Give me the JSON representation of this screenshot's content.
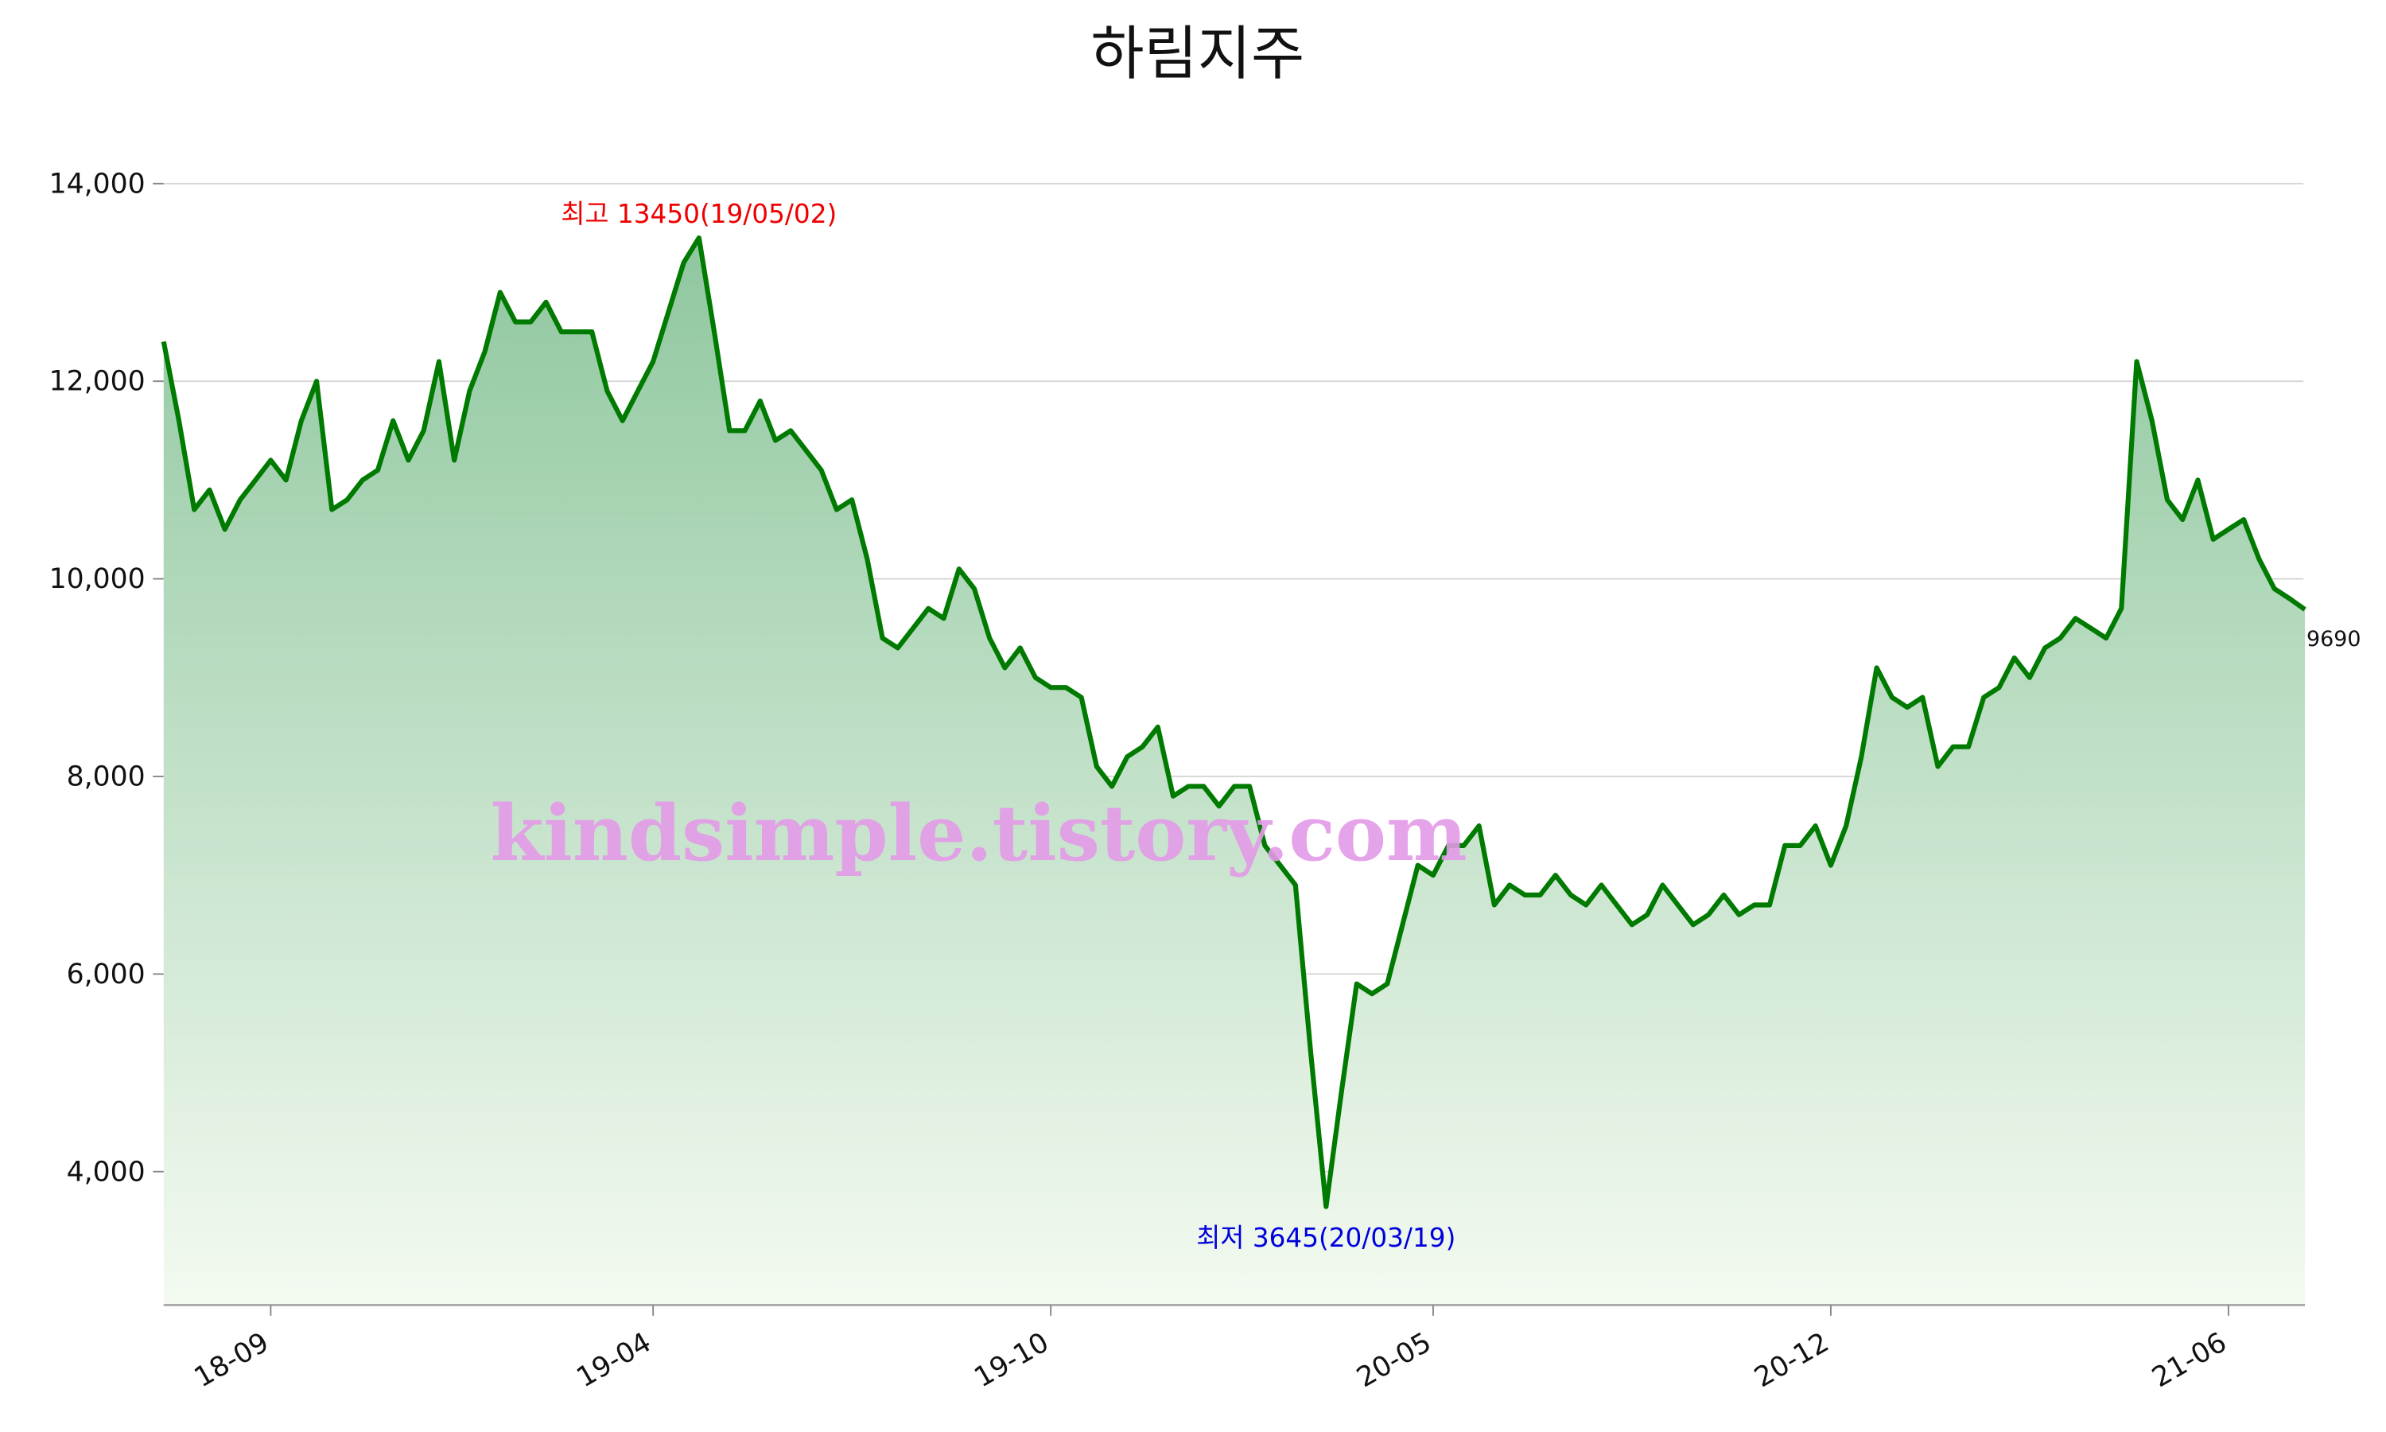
{
  "chart_data": {
    "type": "line",
    "title": "하림지주",
    "categories": [
      null,
      null,
      null,
      null,
      null,
      null,
      null,
      "18-09",
      null,
      null,
      null,
      null,
      null,
      null,
      null,
      null,
      null,
      null,
      null,
      null,
      null,
      null,
      null,
      null,
      null,
      null,
      null,
      null,
      null,
      null,
      null,
      null,
      "19-04",
      null,
      null,
      null,
      null,
      null,
      null,
      null,
      null,
      null,
      null,
      null,
      null,
      null,
      null,
      null,
      null,
      null,
      null,
      null,
      null,
      null,
      null,
      null,
      null,
      null,
      "19-10",
      null,
      null,
      null,
      null,
      null,
      null,
      null,
      null,
      null,
      null,
      null,
      null,
      null,
      null,
      null,
      null,
      null,
      null,
      null,
      null,
      null,
      null,
      null,
      null,
      "20-05",
      null,
      null,
      null,
      null,
      null,
      null,
      null,
      null,
      null,
      null,
      null,
      null,
      null,
      null,
      null,
      null,
      null,
      null,
      null,
      null,
      null,
      null,
      null,
      null,
      null,
      "20-12",
      null,
      null,
      null,
      null,
      null,
      null,
      null,
      null,
      null,
      null,
      null,
      null,
      null,
      null,
      null,
      null,
      null,
      null,
      null,
      null,
      null,
      null,
      null,
      null,
      null,
      "21-06",
      null,
      null,
      null,
      null,
      null
    ],
    "series": [
      {
        "name": "하림지주",
        "color": "#007a00",
        "values": [
          12400,
          11600,
          10700,
          10900,
          10500,
          10800,
          11000,
          11200,
          11000,
          11600,
          12000,
          10700,
          10800,
          11000,
          11100,
          11600,
          11200,
          11500,
          12200,
          11200,
          11900,
          12300,
          12900,
          12600,
          12600,
          12800,
          12500,
          12500,
          12500,
          11900,
          11600,
          11900,
          12200,
          12700,
          13200,
          13450,
          12500,
          11500,
          11500,
          11800,
          11400,
          11500,
          11300,
          11100,
          10700,
          10800,
          10200,
          9400,
          9300,
          9500,
          9700,
          9600,
          10100,
          9900,
          9400,
          9100,
          9300,
          9000,
          8900,
          8900,
          8800,
          8100,
          7900,
          8200,
          8300,
          8500,
          7800,
          7900,
          7900,
          7700,
          7900,
          7900,
          7300,
          7100,
          6900,
          5200,
          3645,
          4800,
          5900,
          5800,
          5900,
          6500,
          7100,
          7000,
          7300,
          7300,
          7500,
          6700,
          6900,
          6800,
          6800,
          7000,
          6800,
          6700,
          6900,
          6700,
          6500,
          6600,
          6900,
          6700,
          6500,
          6600,
          6800,
          6600,
          6700,
          6700,
          7300,
          7300,
          7500,
          7100,
          7500,
          8200,
          9100,
          8800,
          8700,
          8800,
          8100,
          8300,
          8300,
          8800,
          8900,
          9200,
          9000,
          9300,
          9400,
          9600,
          9500,
          9400,
          9700,
          12200,
          11600,
          10800,
          10600,
          11000,
          10400,
          10500,
          10600,
          10200,
          9900,
          9800,
          9690
        ]
      }
    ],
    "ylim": [
      2650,
      14550
    ],
    "yticks": [
      {
        "value": 4000,
        "label": "4,000"
      },
      {
        "value": 6000,
        "label": "6,000"
      },
      {
        "value": 8000,
        "label": "8,000"
      },
      {
        "value": 10000,
        "label": "10,000"
      },
      {
        "value": 12000,
        "label": "12,000"
      },
      {
        "value": 14000,
        "label": "14,000"
      }
    ],
    "grid": true,
    "high_label": "최고 13450(19/05/02)",
    "high_color": "#ee0000",
    "low_label": "최저 3645(20/03/19)",
    "low_color": "#0000dd",
    "watermark": "kindsimple.tistory.com",
    "watermark_color": "#e39ae8"
  }
}
